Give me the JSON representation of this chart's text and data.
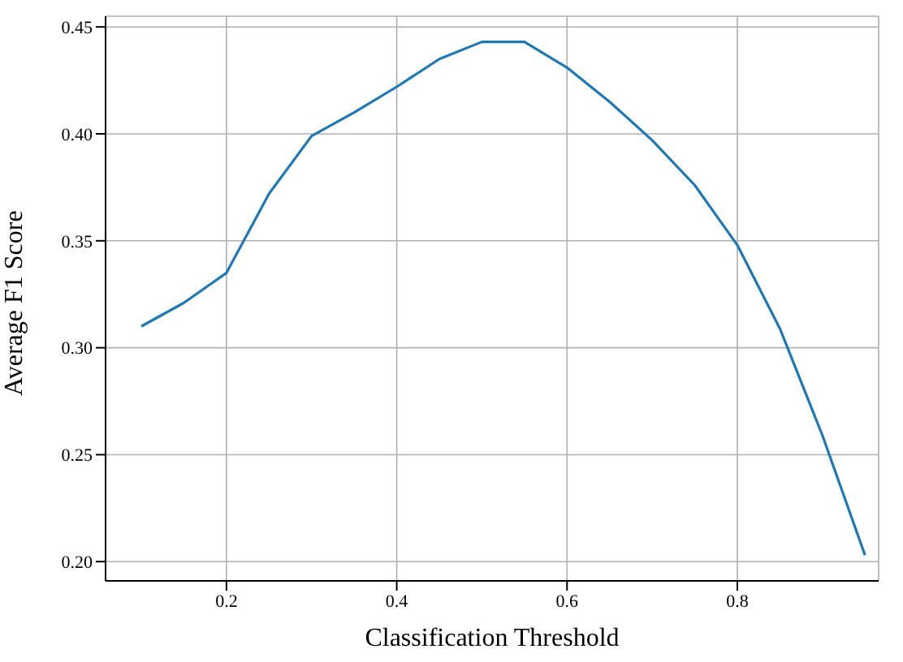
{
  "chart_data": {
    "type": "line",
    "xlabel": "Classification Threshold",
    "ylabel": "Average F1 Score",
    "x": [
      0.1,
      0.15,
      0.2,
      0.25,
      0.3,
      0.35,
      0.4,
      0.45,
      0.5,
      0.55,
      0.6,
      0.65,
      0.7,
      0.75,
      0.8,
      0.85,
      0.9,
      0.95
    ],
    "series": [
      {
        "color": "#1f77b4",
        "values": [
          0.31,
          0.321,
          0.335,
          0.372,
          0.399,
          0.41,
          0.422,
          0.435,
          0.443,
          0.443,
          0.431,
          0.415,
          0.397,
          0.376,
          0.348,
          0.309,
          0.259,
          0.203
        ]
      }
    ],
    "xlim": [
      0.058,
      0.966
    ],
    "xticks": [
      0.2,
      0.4,
      0.6,
      0.8
    ],
    "ylim": [
      0.191,
      0.455
    ],
    "yticks": [
      {
        "value": 0.2,
        "label": "0.20"
      },
      {
        "value": 0.25,
        "label": "0.25"
      },
      {
        "value": 0.3,
        "label": "0.30"
      },
      {
        "value": 0.35,
        "label": "0.35"
      },
      {
        "value": 0.4,
        "label": "0.40"
      },
      {
        "value": 0.45,
        "label": "0.45"
      }
    ],
    "grid": true,
    "marker": "none",
    "line_style": "solid",
    "legend": false
  }
}
